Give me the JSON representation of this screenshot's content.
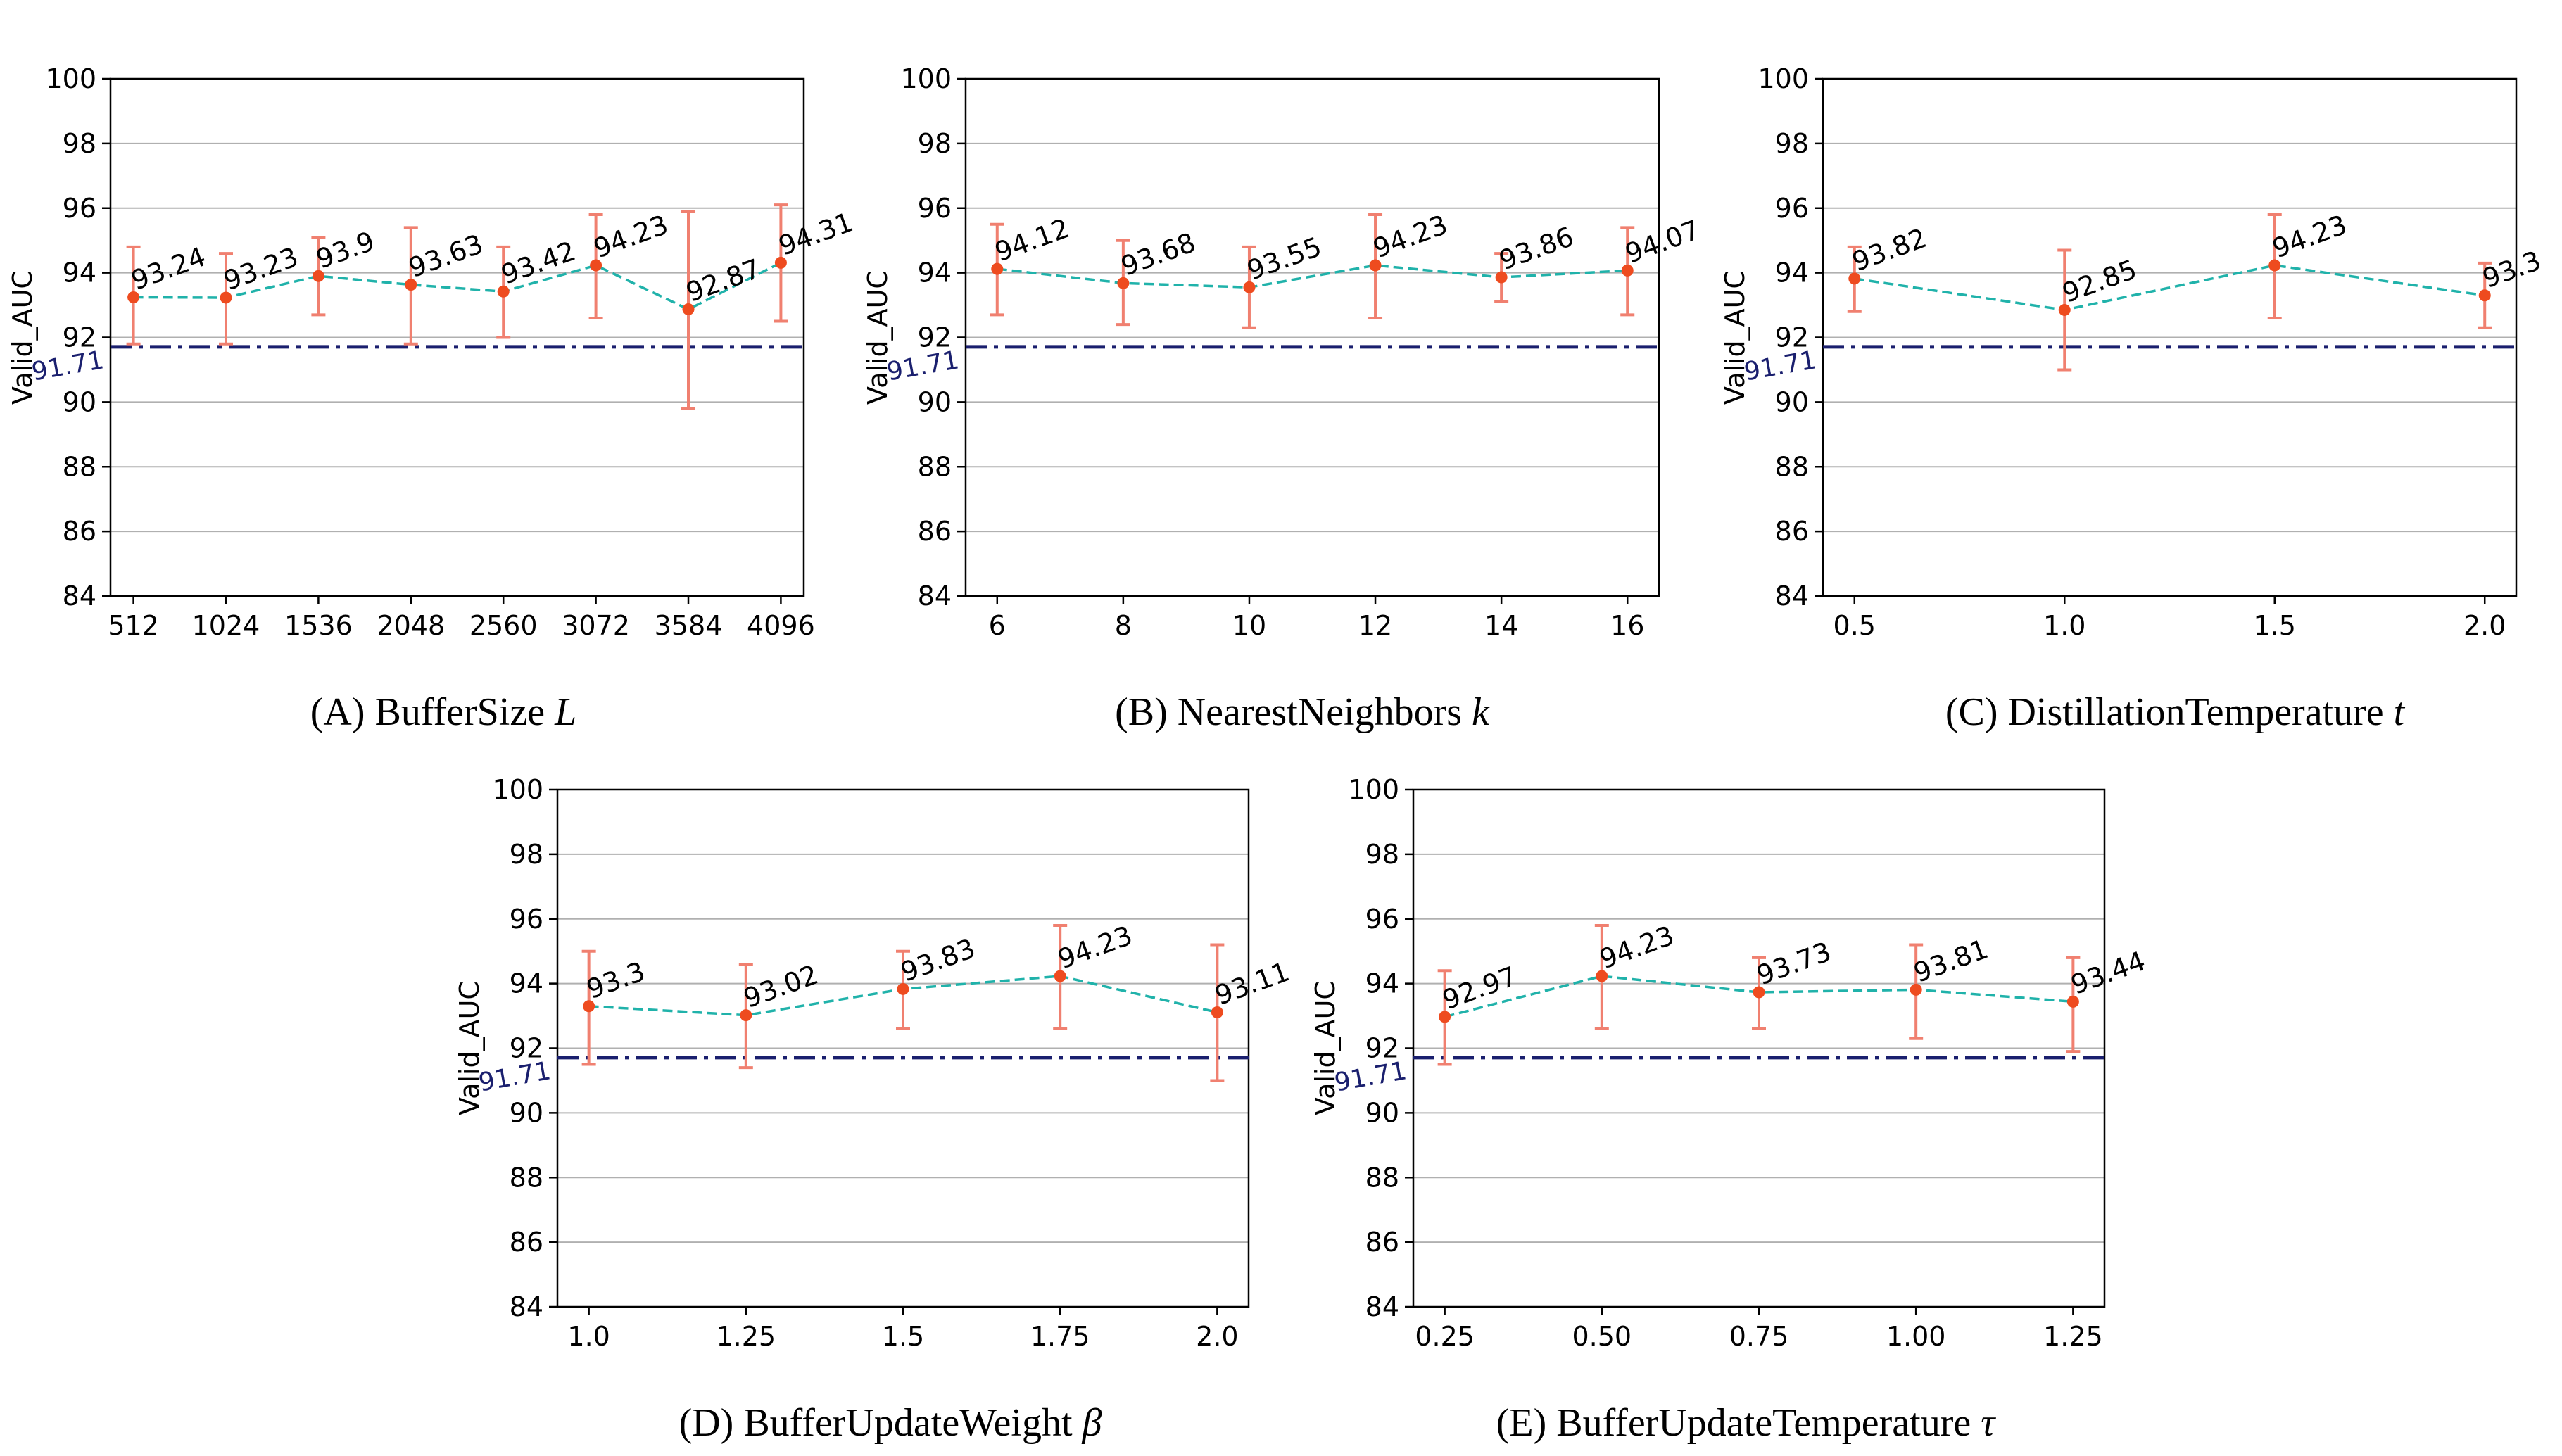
{
  "colors": {
    "line": "#20b2aa",
    "marker": "#ee4b1f",
    "errorbar": "#f08070",
    "baseline": "#1a1f6e",
    "grid": "#b0b0b0"
  },
  "chart_data": [
    {
      "type": "line",
      "caption_text": "(A) BufferSize ",
      "caption_symbol": "L",
      "ylabel": "Valid_AUC",
      "ylim": [
        84,
        100
      ],
      "yticks": [
        "84",
        "86",
        "88",
        "90",
        "92",
        "94",
        "96",
        "98",
        "100"
      ],
      "grid": "horizontal",
      "x": [
        512,
        1024,
        1536,
        2048,
        2560,
        3072,
        3584,
        4096
      ],
      "xlim": [
        385,
        4223
      ],
      "xtick_values": [
        512,
        1024,
        1536,
        2048,
        2560,
        3072,
        3584,
        4096
      ],
      "xtick_labels": [
        "512",
        "1024",
        "1536",
        "2048",
        "2560",
        "3072",
        "3584",
        "4096"
      ],
      "values": [
        93.24,
        93.23,
        93.9,
        93.63,
        93.42,
        94.23,
        92.87,
        94.31
      ],
      "labels": [
        "93.24",
        "93.23",
        "93.9",
        "93.63",
        "93.42",
        "94.23",
        "92.87",
        "94.31"
      ],
      "err_low": [
        91.8,
        91.8,
        92.7,
        91.8,
        92.0,
        92.6,
        89.8,
        92.5
      ],
      "err_high": [
        94.8,
        94.6,
        95.1,
        95.4,
        94.8,
        95.8,
        95.9,
        96.1
      ],
      "baseline": 91.71,
      "baseline_label": "91.71"
    },
    {
      "type": "line",
      "caption_text": "(B) NearestNeighbors ",
      "caption_symbol": "k",
      "ylabel": "Valid_AUC",
      "ylim": [
        84,
        100
      ],
      "yticks": [
        "84",
        "86",
        "88",
        "90",
        "92",
        "94",
        "96",
        "98",
        "100"
      ],
      "grid": "horizontal",
      "x": [
        6,
        8,
        10,
        12,
        14,
        16
      ],
      "xlim": [
        5.5,
        16.5
      ],
      "xtick_values": [
        6,
        8,
        10,
        12,
        14,
        16
      ],
      "xtick_labels": [
        "6",
        "8",
        "10",
        "12",
        "14",
        "16"
      ],
      "values": [
        94.12,
        93.68,
        93.55,
        94.23,
        93.86,
        94.07
      ],
      "labels": [
        "94.12",
        "93.68",
        "93.55",
        "94.23",
        "93.86",
        "94.07"
      ],
      "err_low": [
        92.7,
        92.4,
        92.3,
        92.6,
        93.1,
        92.7
      ],
      "err_high": [
        95.5,
        95.0,
        94.8,
        95.8,
        94.6,
        95.4
      ],
      "baseline": 91.71,
      "baseline_label": "91.71"
    },
    {
      "type": "line",
      "caption_text": "(C) DistillationTemperature ",
      "caption_symbol": "t",
      "ylabel": "Valid_AUC",
      "ylim": [
        84,
        100
      ],
      "yticks": [
        "84",
        "86",
        "88",
        "90",
        "92",
        "94",
        "96",
        "98",
        "100"
      ],
      "grid": "horizontal",
      "x": [
        0.5,
        1.0,
        1.5,
        2.0
      ],
      "xlim": [
        0.425,
        2.075
      ],
      "xtick_values": [
        0.5,
        1.0,
        1.5,
        2.0
      ],
      "xtick_labels": [
        "0.5",
        "1.0",
        "1.5",
        "2.0"
      ],
      "values": [
        93.82,
        92.85,
        94.23,
        93.3
      ],
      "labels": [
        "93.82",
        "92.85",
        "94.23",
        "93.3"
      ],
      "err_low": [
        92.8,
        91.0,
        92.6,
        92.3
      ],
      "err_high": [
        94.8,
        94.7,
        95.8,
        94.3
      ],
      "baseline": 91.71,
      "baseline_label": "91.71"
    },
    {
      "type": "line",
      "caption_text": "(D) BufferUpdateWeight ",
      "caption_symbol": "β",
      "ylabel": "Valid_AUC",
      "ylim": [
        84,
        100
      ],
      "yticks": [
        "84",
        "86",
        "88",
        "90",
        "92",
        "94",
        "96",
        "98",
        "100"
      ],
      "grid": "horizontal",
      "x": [
        1.0,
        1.25,
        1.5,
        1.75,
        2.0
      ],
      "xlim": [
        0.95,
        2.05
      ],
      "xtick_values": [
        1.0,
        1.25,
        1.5,
        1.75,
        2.0
      ],
      "xtick_labels": [
        "1.0",
        "1.25",
        "1.5",
        "1.75",
        "2.0"
      ],
      "values": [
        93.3,
        93.02,
        93.83,
        94.23,
        93.11
      ],
      "labels": [
        "93.3",
        "93.02",
        "93.83",
        "94.23",
        "93.11"
      ],
      "err_low": [
        91.5,
        91.4,
        92.6,
        92.6,
        91.0
      ],
      "err_high": [
        95.0,
        94.6,
        95.0,
        95.8,
        95.2
      ],
      "baseline": 91.71,
      "baseline_label": "91.71"
    },
    {
      "type": "line",
      "caption_text": "(E) BufferUpdateTemperature ",
      "caption_symbol": "τ",
      "ylabel": "Valid_AUC",
      "ylim": [
        84,
        100
      ],
      "yticks": [
        "84",
        "86",
        "88",
        "90",
        "92",
        "94",
        "96",
        "98",
        "100"
      ],
      "grid": "horizontal",
      "x": [
        0.25,
        0.5,
        0.75,
        1.0,
        1.25
      ],
      "xlim": [
        0.2,
        1.3
      ],
      "xtick_values": [
        0.25,
        0.5,
        0.75,
        1.0,
        1.25
      ],
      "xtick_labels": [
        "0.25",
        "0.50",
        "0.75",
        "1.00",
        "1.25"
      ],
      "values": [
        92.97,
        94.23,
        93.73,
        93.81,
        93.44
      ],
      "labels": [
        "92.97",
        "94.23",
        "93.73",
        "93.81",
        "93.44"
      ],
      "err_low": [
        91.5,
        92.6,
        92.6,
        92.3,
        91.9
      ],
      "err_high": [
        94.4,
        95.8,
        94.8,
        95.2,
        94.8
      ],
      "baseline": 91.71,
      "baseline_label": "91.71"
    }
  ]
}
